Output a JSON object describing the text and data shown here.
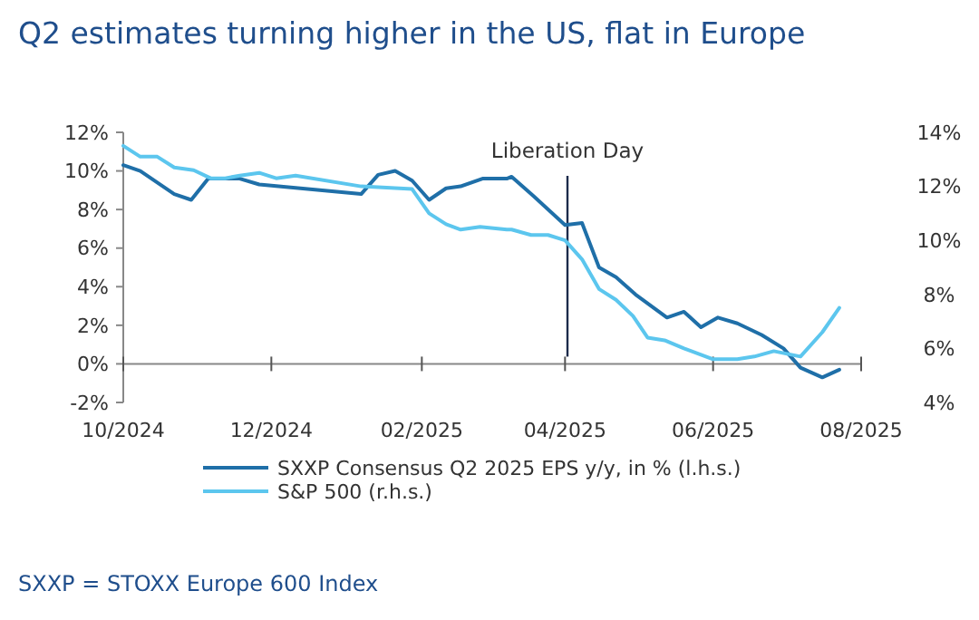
{
  "chart_data": {
    "type": "line",
    "title": "Q2 estimates turning higher in the US, flat in Europe",
    "xlim": [
      "2024-10-01",
      "2025-08-01"
    ],
    "xticks": [
      {
        "value": "2024-10-01",
        "label": "10/2024"
      },
      {
        "value": "2024-12-01",
        "label": "12/2024"
      },
      {
        "value": "2025-02-01",
        "label": "02/2025"
      },
      {
        "value": "2025-04-01",
        "label": "04/2025"
      },
      {
        "value": "2025-06-01",
        "label": "06/2025"
      },
      {
        "value": "2025-08-01",
        "label": "08/2025"
      }
    ],
    "ylim": [
      -2,
      12
    ],
    "yticks": [
      {
        "value": -2,
        "label": "-2%"
      },
      {
        "value": 0,
        "label": "0%"
      },
      {
        "value": 2,
        "label": "2%"
      },
      {
        "value": 4,
        "label": "4%"
      },
      {
        "value": 6,
        "label": "6%"
      },
      {
        "value": 8,
        "label": "8%"
      },
      {
        "value": 10,
        "label": "10%"
      },
      {
        "value": 12,
        "label": "12%"
      }
    ],
    "y2lim": [
      4,
      14
    ],
    "y2ticks": [
      {
        "value": 4,
        "label": "4%"
      },
      {
        "value": 6,
        "label": "6%"
      },
      {
        "value": 8,
        "label": "8%"
      },
      {
        "value": 10,
        "label": "10%"
      },
      {
        "value": 12,
        "label": "12%"
      },
      {
        "value": 14,
        "label": "14%"
      }
    ],
    "series": [
      {
        "name": "SXXP Consensus Q2 2025 EPS y/y, in % (l.h.s.)",
        "color": "#1f6fa8",
        "x": [
          "2024-10-01",
          "2024-10-08",
          "2024-10-22",
          "2024-10-29",
          "2024-11-05",
          "2024-11-18",
          "2024-11-26",
          "2025-01-07",
          "2025-01-14",
          "2025-01-21",
          "2025-01-28",
          "2025-02-04",
          "2025-02-11",
          "2025-02-17",
          "2025-02-26",
          "2025-03-08",
          "2025-03-10",
          "2025-03-19",
          "2025-04-01",
          "2025-04-08",
          "2025-04-15",
          "2025-04-22",
          "2025-04-30",
          "2025-05-13",
          "2025-05-20",
          "2025-05-27",
          "2025-06-03",
          "2025-06-11",
          "2025-06-21",
          "2025-06-30",
          "2025-07-07",
          "2025-07-16",
          "2025-07-23"
        ],
        "values": [
          10.3,
          10.0,
          8.8,
          8.5,
          9.6,
          9.6,
          9.3,
          8.8,
          9.8,
          10.0,
          9.5,
          8.5,
          9.1,
          9.2,
          9.6,
          9.6,
          9.7,
          8.7,
          7.2,
          7.3,
          5.0,
          4.5,
          3.6,
          2.4,
          2.7,
          1.9,
          2.4,
          2.1,
          1.5,
          0.8,
          -0.2,
          -0.7,
          -0.3
        ]
      },
      {
        "name": "S&P 500 (r.h.s.)",
        "color": "#5cc6ee",
        "axis": "y2",
        "x": [
          "2024-10-01",
          "2024-10-08",
          "2024-10-15",
          "2024-10-22",
          "2024-10-30",
          "2024-11-06",
          "2024-11-12",
          "2024-11-18",
          "2024-11-26",
          "2024-12-03",
          "2024-12-11",
          "2025-01-07",
          "2025-01-28",
          "2025-02-04",
          "2025-02-11",
          "2025-02-17",
          "2025-02-25",
          "2025-03-08",
          "2025-03-10",
          "2025-03-18",
          "2025-03-25",
          "2025-04-01",
          "2025-04-08",
          "2025-04-15",
          "2025-04-22",
          "2025-04-29",
          "2025-05-05",
          "2025-05-12",
          "2025-05-20",
          "2025-06-01",
          "2025-06-11",
          "2025-06-18",
          "2025-06-26",
          "2025-07-07",
          "2025-07-16",
          "2025-07-23"
        ],
        "values": [
          13.5,
          13.1,
          13.1,
          12.7,
          12.6,
          12.3,
          12.3,
          12.4,
          12.5,
          12.3,
          12.4,
          12.0,
          11.9,
          11.0,
          10.6,
          10.4,
          10.5,
          10.4,
          10.4,
          10.2,
          10.2,
          10.0,
          9.3,
          8.2,
          7.8,
          7.2,
          6.4,
          6.3,
          6.0,
          5.6,
          5.6,
          5.7,
          5.9,
          5.7,
          6.6,
          7.5
        ]
      }
    ],
    "ref_lines": [
      {
        "axis": "x",
        "value": "2025-04-02",
        "label": "Liberation Day",
        "color": "#1c2a4a"
      }
    ],
    "legend": "bottom",
    "annotations": [
      "SXXP = STOXX Europe 600 Index"
    ]
  }
}
